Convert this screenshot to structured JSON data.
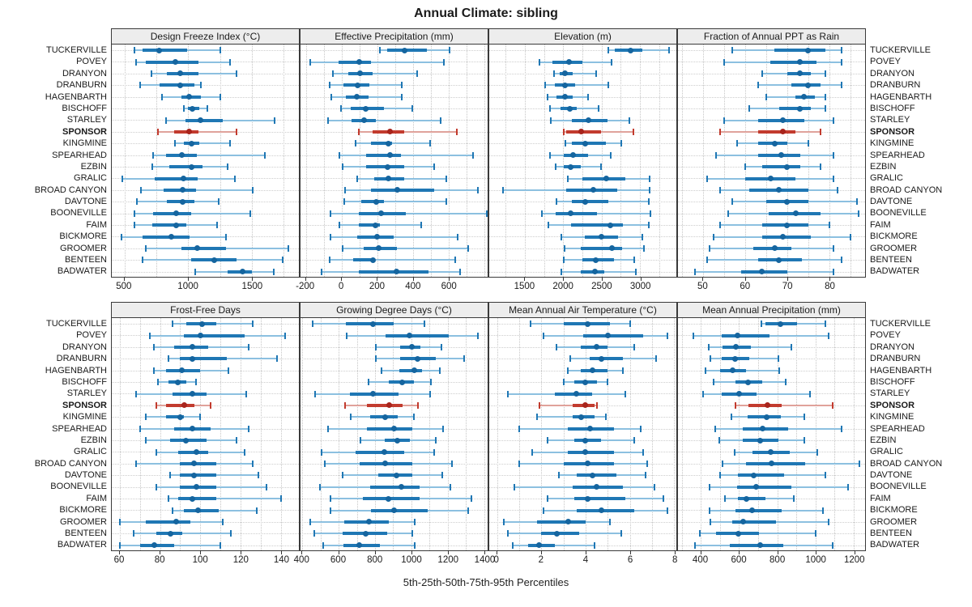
{
  "title": "Annual Climate: sibling",
  "footer": "5th-25th-50th-75th-95th Percentiles",
  "highlight_station": "SPONSOR",
  "stations": [
    "TUCKERVILLE",
    "POVEY",
    "DRANYON",
    "DRANBURN",
    "HAGENBARTH",
    "BISCHOFF",
    "STARLEY",
    "SPONSOR",
    "KINGMINE",
    "SPEARHEAD",
    "EZBIN",
    "GRALIC",
    "BROAD CANYON",
    "DAVTONE",
    "BOONEVILLE",
    "FAIM",
    "BICKMORE",
    "GROOMER",
    "BENTEEN",
    "BADWATER"
  ],
  "colors": {
    "blue_thin": "#8cc0e0",
    "blue_bar": "#1f77b4",
    "blue_dot": "#15659f",
    "red_thin": "#e0a29b",
    "red_bar": "#c23b2e",
    "red_dot": "#a8241c",
    "grid": "#c6c6c6",
    "border": "#3a3a3a",
    "header_bg": "#ededed"
  },
  "chart_data": [
    {
      "type": "dot-interval",
      "title": "Design Freeze Index (°C)",
      "xlim": [
        400,
        1870
      ],
      "ticks": [
        500,
        1000,
        1500
      ],
      "grid_step": 250,
      "percentiles": [
        5,
        25,
        50,
        75,
        95
      ],
      "values": [
        [
          575,
          645,
          770,
          995,
          1255
        ],
        [
          590,
          670,
          900,
          1080,
          1330
        ],
        [
          710,
          830,
          940,
          1080,
          1380
        ],
        [
          620,
          775,
          940,
          1050,
          1100
        ],
        [
          795,
          945,
          1010,
          1100,
          1250
        ],
        [
          965,
          995,
          1030,
          1090,
          1150
        ],
        [
          825,
          980,
          1095,
          1270,
          1680
        ],
        [
          760,
          890,
          1005,
          1080,
          1380
        ],
        [
          895,
          965,
          1025,
          1090,
          1330
        ],
        [
          725,
          825,
          950,
          1070,
          1605
        ],
        [
          715,
          850,
          1025,
          1110,
          1310
        ],
        [
          480,
          735,
          965,
          1075,
          1365
        ],
        [
          630,
          810,
          955,
          1065,
          1510
        ],
        [
          600,
          830,
          955,
          1050,
          1240
        ],
        [
          575,
          725,
          905,
          1025,
          1485
        ],
        [
          575,
          715,
          905,
          985,
          1225
        ],
        [
          475,
          645,
          865,
          1010,
          1295
        ],
        [
          670,
          950,
          1070,
          1300,
          1790
        ],
        [
          640,
          1025,
          1205,
          1380,
          1740
        ],
        [
          1055,
          1310,
          1430,
          1500,
          1670
        ]
      ]
    },
    {
      "type": "dot-interval",
      "title": "Effective Precipitation (mm)",
      "xlim": [
        -230,
        820
      ],
      "ticks": [
        -200,
        0,
        200,
        400,
        600
      ],
      "grid_step": 100,
      "percentiles": [
        5,
        25,
        50,
        75,
        95
      ],
      "values": [
        [
          215,
          255,
          355,
          480,
          605
        ],
        [
          -175,
          -15,
          100,
          165,
          575
        ],
        [
          -50,
          40,
          105,
          175,
          425
        ],
        [
          -65,
          10,
          90,
          155,
          340
        ],
        [
          -55,
          25,
          85,
          150,
          340
        ],
        [
          -5,
          50,
          135,
          240,
          395
        ],
        [
          -75,
          55,
          125,
          195,
          555
        ],
        [
          95,
          175,
          270,
          350,
          645
        ],
        [
          80,
          165,
          265,
          285,
          495
        ],
        [
          -10,
          140,
          270,
          335,
          740
        ],
        [
          5,
          140,
          260,
          350,
          520
        ],
        [
          90,
          185,
          265,
          350,
          590
        ],
        [
          20,
          165,
          315,
          520,
          765
        ],
        [
          15,
          110,
          195,
          240,
          590
        ],
        [
          -60,
          95,
          220,
          360,
          815
        ],
        [
          -10,
          95,
          190,
          215,
          445
        ],
        [
          -60,
          90,
          200,
          295,
          650
        ],
        [
          5,
          125,
          210,
          310,
          710
        ],
        [
          -65,
          65,
          175,
          185,
          640
        ],
        [
          -110,
          95,
          310,
          490,
          665
        ]
      ]
    },
    {
      "type": "dot-interval",
      "title": "Elevation (m)",
      "xlim": [
        1035,
        3475
      ],
      "ticks": [
        1500,
        2000,
        2500,
        3000
      ],
      "grid_step": 250,
      "percentiles": [
        5,
        25,
        50,
        75,
        95
      ],
      "values": [
        [
          2590,
          2670,
          2880,
          3030,
          3385
        ],
        [
          1690,
          1855,
          2075,
          2250,
          2625
        ],
        [
          1875,
          1950,
          2025,
          2125,
          2425
        ],
        [
          1760,
          1890,
          2025,
          2155,
          2590
        ],
        [
          1795,
          1915,
          2025,
          2125,
          2320
        ],
        [
          1830,
          1960,
          2085,
          2180,
          2460
        ],
        [
          1840,
          2110,
          2330,
          2580,
          2860
        ],
        [
          2005,
          2040,
          2230,
          2495,
          2915
        ],
        [
          2030,
          2110,
          2290,
          2555,
          2755
        ],
        [
          1830,
          2005,
          2125,
          2320,
          2615
        ],
        [
          1900,
          2005,
          2100,
          2230,
          2495
        ],
        [
          2055,
          2250,
          2565,
          2810,
          3125
        ],
        [
          1215,
          2040,
          2390,
          2705,
          3125
        ],
        [
          1915,
          2110,
          2290,
          2590,
          3115
        ],
        [
          1725,
          1900,
          2100,
          2440,
          3140
        ],
        [
          1810,
          2100,
          2610,
          2775,
          3115
        ],
        [
          1970,
          2285,
          2495,
          2715,
          3035
        ],
        [
          2020,
          2230,
          2635,
          2765,
          3055
        ],
        [
          2005,
          2250,
          2425,
          2660,
          2930
        ],
        [
          1970,
          2225,
          2415,
          2540,
          2950
        ]
      ]
    },
    {
      "type": "dot-interval",
      "title": "Fraction of Annual PPT as Rain",
      "xlim": [
        44,
        88.5
      ],
      "ticks": [
        50,
        60,
        70,
        80
      ],
      "grid_step": 5,
      "percentiles": [
        5,
        25,
        50,
        75,
        95
      ],
      "values": [
        [
          57,
          67,
          75,
          79,
          83
        ],
        [
          55,
          66,
          73,
          77,
          83
        ],
        [
          64,
          70,
          73,
          75.5,
          79
        ],
        [
          63,
          71,
          75,
          78,
          83
        ],
        [
          65,
          72,
          74,
          76.5,
          79
        ],
        [
          61,
          68,
          73,
          75.5,
          79
        ],
        [
          55,
          63,
          69,
          74,
          81
        ],
        [
          54,
          63,
          69,
          72,
          78
        ],
        [
          58,
          63,
          67,
          70,
          75
        ],
        [
          53,
          63,
          68.5,
          73,
          81
        ],
        [
          60,
          64,
          70,
          73,
          78
        ],
        [
          51,
          60,
          66,
          72,
          81
        ],
        [
          54,
          61,
          68,
          75,
          82
        ],
        [
          57,
          65,
          70,
          75,
          86.5
        ],
        [
          56,
          65.5,
          72,
          78,
          87
        ],
        [
          54,
          64,
          70,
          75,
          80
        ],
        [
          52.5,
          64,
          69,
          75.5,
          85
        ],
        [
          51.5,
          62,
          67,
          71,
          81
        ],
        [
          51,
          63,
          68,
          73.5,
          83
        ],
        [
          48,
          59,
          64,
          70,
          81
        ]
      ]
    },
    {
      "type": "dot-interval",
      "title": "Frost-Free Days",
      "xlim": [
        56,
        149
      ],
      "ticks": [
        60,
        80,
        100,
        120,
        140
      ],
      "grid_step": 10,
      "percentiles": [
        5,
        25,
        50,
        75,
        95
      ],
      "values": [
        [
          86,
          93,
          101,
          108,
          126
        ],
        [
          75,
          92,
          100,
          122,
          142
        ],
        [
          77,
          87,
          96,
          104,
          124
        ],
        [
          84,
          90,
          96,
          113,
          138
        ],
        [
          77,
          83,
          91,
          100,
          114
        ],
        [
          79,
          84,
          89,
          93,
          98
        ],
        [
          68,
          86,
          96,
          103,
          123
        ],
        [
          78,
          83,
          92,
          97,
          105
        ],
        [
          73,
          83,
          90,
          92,
          100
        ],
        [
          70,
          87,
          96,
          105,
          124
        ],
        [
          73,
          85,
          93,
          103,
          118
        ],
        [
          78,
          89,
          98,
          104,
          122
        ],
        [
          68,
          90,
          97,
          108,
          126
        ],
        [
          85,
          90,
          97,
          108,
          129
        ],
        [
          78,
          90,
          98,
          108,
          133
        ],
        [
          84,
          89,
          96,
          108,
          140
        ],
        [
          86,
          92,
          99,
          109,
          128
        ],
        [
          60,
          73,
          88,
          95,
          111
        ],
        [
          67,
          78,
          85,
          91,
          115
        ],
        [
          60,
          70,
          77,
          87,
          110
        ]
      ]
    },
    {
      "type": "dot-interval",
      "title": "Growing Degree Days (°C)",
      "xlim": [
        390,
        1420
      ],
      "ticks": [
        400,
        600,
        800,
        1000,
        1200,
        1400
      ],
      "grid_step": 100,
      "percentiles": [
        5,
        25,
        50,
        75,
        95
      ],
      "values": [
        [
          455,
          640,
          790,
          905,
          1070
        ],
        [
          645,
          860,
          990,
          1205,
          1365
        ],
        [
          805,
          940,
          1005,
          1050,
          1165
        ],
        [
          805,
          940,
          1035,
          1135,
          1290
        ],
        [
          835,
          935,
          1015,
          1060,
          1155
        ],
        [
          765,
          875,
          950,
          1015,
          1110
        ],
        [
          470,
          660,
          790,
          930,
          1105
        ],
        [
          635,
          755,
          880,
          950,
          1035
        ],
        [
          665,
          775,
          855,
          925,
          1015
        ],
        [
          540,
          755,
          905,
          1005,
          1175
        ],
        [
          720,
          855,
          925,
          990,
          1135
        ],
        [
          505,
          695,
          850,
          960,
          1125
        ],
        [
          525,
          715,
          855,
          1005,
          1225
        ],
        [
          620,
          820,
          920,
          1005,
          1170
        ],
        [
          495,
          775,
          945,
          1045,
          1215
        ],
        [
          555,
          735,
          875,
          1045,
          1330
        ],
        [
          555,
          780,
          905,
          1090,
          1315
        ],
        [
          445,
          630,
          765,
          875,
          1020
        ],
        [
          465,
          620,
          750,
          865,
          1005
        ],
        [
          515,
          625,
          715,
          825,
          1020
        ]
      ]
    },
    {
      "type": "dot-interval",
      "title": "Mean Annual Air Temperature (°C)",
      "xlim": [
        -0.35,
        8.1
      ],
      "ticks": [
        0,
        2,
        4,
        6,
        8
      ],
      "grid_step": 1,
      "percentiles": [
        5,
        25,
        50,
        75,
        95
      ],
      "values": [
        [
          1.5,
          3.0,
          4.1,
          5.1,
          6.0
        ],
        [
          2.1,
          3.9,
          5.0,
          6.6,
          7.7
        ],
        [
          2.7,
          3.8,
          4.5,
          5.0,
          6.2
        ],
        [
          3.3,
          4.2,
          4.7,
          5.7,
          7.2
        ],
        [
          3.2,
          3.8,
          4.3,
          5.0,
          5.7
        ],
        [
          3.0,
          3.5,
          4.0,
          4.5,
          5.0
        ],
        [
          0.5,
          2.6,
          3.6,
          4.3,
          5.8
        ],
        [
          1.9,
          3.4,
          4.0,
          4.4,
          4.5
        ],
        [
          1.8,
          3.4,
          3.8,
          4.4,
          4.9
        ],
        [
          1.0,
          3.2,
          4.2,
          5.3,
          6.5
        ],
        [
          2.3,
          3.5,
          4.0,
          4.7,
          6.2
        ],
        [
          1.6,
          3.2,
          4.0,
          5.3,
          6.6
        ],
        [
          1.0,
          3.0,
          4.1,
          5.3,
          6.8
        ],
        [
          2.8,
          3.6,
          4.3,
          5.4,
          6.7
        ],
        [
          0.8,
          3.4,
          4.5,
          5.7,
          7.1
        ],
        [
          2.3,
          3.5,
          4.1,
          5.8,
          7.5
        ],
        [
          2.1,
          3.6,
          4.7,
          6.2,
          7.7
        ],
        [
          0.3,
          1.8,
          3.2,
          4.0,
          5.1
        ],
        [
          0.5,
          2.0,
          2.7,
          3.7,
          5.6
        ],
        [
          0.7,
          1.4,
          1.9,
          2.6,
          4.4
        ]
      ]
    },
    {
      "type": "dot-interval",
      "title": "Mean Annual Precipitation (mm)",
      "xlim": [
        280,
        1260
      ],
      "ticks": [
        400,
        600,
        800,
        1000,
        1200
      ],
      "grid_step": 100,
      "percentiles": [
        5,
        25,
        50,
        75,
        95
      ],
      "values": [
        [
          715,
          740,
          815,
          905,
          1050
        ],
        [
          360,
          510,
          590,
          760,
          1070
        ],
        [
          440,
          515,
          585,
          660,
          875
        ],
        [
          450,
          510,
          580,
          655,
          805
        ],
        [
          425,
          500,
          565,
          635,
          810
        ],
        [
          465,
          580,
          645,
          720,
          845
        ],
        [
          410,
          510,
          600,
          690,
          970
        ],
        [
          580,
          650,
          750,
          825,
          1090
        ],
        [
          560,
          645,
          745,
          820,
          940
        ],
        [
          475,
          620,
          725,
          855,
          1135
        ],
        [
          495,
          620,
          710,
          805,
          940
        ],
        [
          575,
          670,
          765,
          865,
          1010
        ],
        [
          515,
          635,
          770,
          945,
          1230
        ],
        [
          500,
          595,
          675,
          835,
          1050
        ],
        [
          445,
          590,
          690,
          875,
          1170
        ],
        [
          525,
          595,
          640,
          740,
          885
        ],
        [
          445,
          580,
          670,
          825,
          1040
        ],
        [
          450,
          565,
          620,
          795,
          1070
        ],
        [
          395,
          480,
          595,
          705,
          1000
        ],
        [
          370,
          550,
          710,
          830,
          1090
        ]
      ]
    }
  ]
}
